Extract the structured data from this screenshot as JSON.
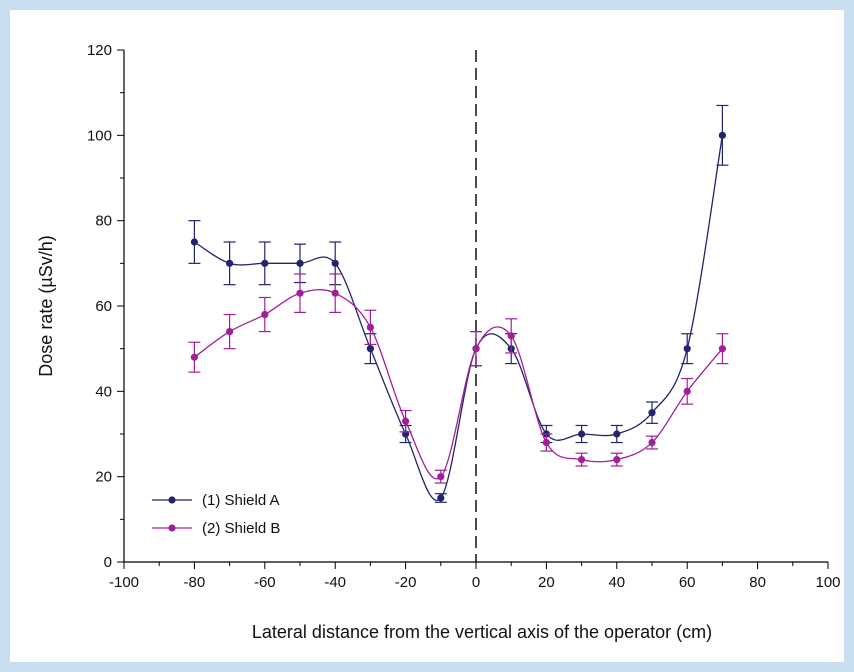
{
  "chart_data": {
    "type": "line",
    "title": "",
    "xlabel": "Lateral distance from the vertical axis of the operator (cm)",
    "ylabel": "Dose rate (µSv/h)",
    "xlim": [
      -100,
      100
    ],
    "ylim": [
      0,
      120
    ],
    "xticks": [
      -100,
      -80,
      -60,
      -40,
      -20,
      0,
      20,
      40,
      60,
      80,
      100
    ],
    "yticks": [
      0,
      20,
      40,
      60,
      80,
      100,
      120
    ],
    "vertical_reference_line_x": 0,
    "grid": false,
    "legend_position": "bottom-left",
    "series": [
      {
        "name": "(1) Shield A",
        "color": "#23236e",
        "x": [
          -80,
          -70,
          -60,
          -50,
          -40,
          -30,
          -20,
          -10,
          0,
          10,
          20,
          30,
          40,
          50,
          60,
          70
        ],
        "values": [
          75,
          70,
          70,
          70,
          70,
          50,
          30,
          15,
          50,
          50,
          30,
          30,
          30,
          35,
          50,
          100
        ],
        "error": [
          5,
          5,
          5,
          4.5,
          5,
          3.5,
          2,
          1,
          4,
          3.5,
          2,
          2,
          2,
          2.5,
          3.5,
          7
        ]
      },
      {
        "name": "(2) Shield B",
        "color": "#a0209a",
        "x": [
          -80,
          -70,
          -60,
          -50,
          -40,
          -30,
          -20,
          -10,
          0,
          10,
          20,
          30,
          40,
          50,
          60,
          70
        ],
        "values": [
          48,
          54,
          58,
          63,
          63,
          55,
          33,
          20,
          50,
          53,
          28,
          24,
          24,
          28,
          40,
          50
        ],
        "error": [
          3.5,
          4,
          4,
          4.5,
          4.5,
          4,
          2.5,
          1.5,
          4,
          4,
          2,
          1.5,
          1.5,
          1.5,
          3,
          3.5
        ]
      }
    ]
  }
}
